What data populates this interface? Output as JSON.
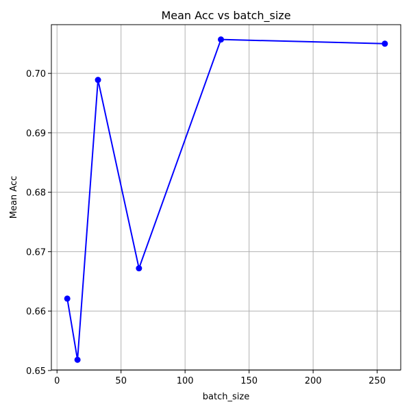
{
  "chart_data": {
    "type": "line",
    "title": "Mean Acc vs batch_size",
    "xlabel": "batch_size",
    "ylabel": "Mean Acc",
    "x": [
      8,
      16,
      32,
      64,
      128,
      256
    ],
    "series": [
      {
        "values": [
          0.6621,
          0.6518,
          0.6989,
          0.6672,
          0.7057,
          0.705
        ],
        "color": "#0000ff"
      }
    ],
    "xlim": [
      -4.4,
      268.4
    ],
    "ylim": [
      0.6501,
      0.7082
    ],
    "xticks": [
      0,
      50,
      100,
      150,
      200,
      250
    ],
    "yticks": [
      0.65,
      0.66,
      0.67,
      0.68,
      0.69,
      0.7
    ],
    "xtick_labels": [
      "0",
      "50",
      "100",
      "150",
      "200",
      "250"
    ],
    "ytick_labels": [
      "0.65",
      "0.66",
      "0.67",
      "0.68",
      "0.69",
      "0.70"
    ],
    "grid": true,
    "grid_color": "#b0b0b0",
    "marker": "circle"
  }
}
